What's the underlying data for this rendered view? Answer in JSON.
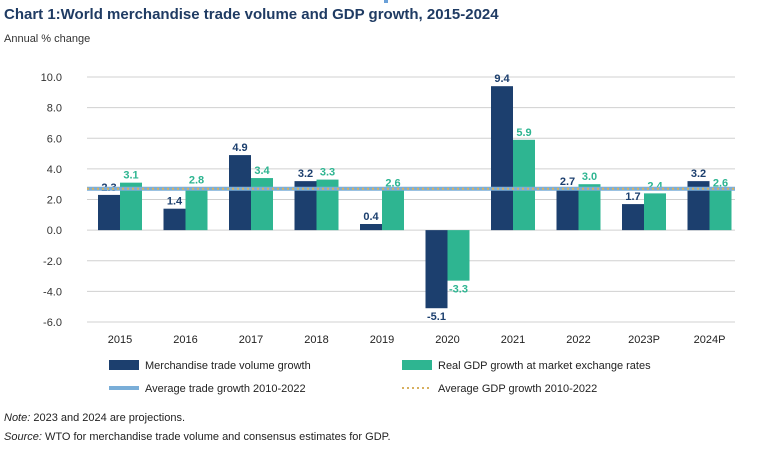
{
  "title": "Chart 1:World merchandise trade volume and GDP growth, 2015-2024",
  "subtitle": "Annual % change",
  "notes": {
    "note_label": "Note:",
    "note_text": " 2023 and 2024 are projections.",
    "source_label": "Source:",
    "source_text": " WTO for merchandise trade volume and consensus estimates for GDP."
  },
  "chart_data": {
    "type": "bar",
    "categories": [
      "2015",
      "2016",
      "2017",
      "2018",
      "2019",
      "2020",
      "2021",
      "2022",
      "2023P",
      "2024P"
    ],
    "series": [
      {
        "name": "Merchandise trade volume growth",
        "color": "#1c3f6e",
        "values": [
          2.3,
          1.4,
          4.9,
          3.2,
          0.4,
          -5.1,
          9.4,
          2.7,
          1.7,
          3.2
        ]
      },
      {
        "name": "Real GDP growth at market exchange rates",
        "color": "#2eb591",
        "values": [
          3.1,
          2.8,
          3.4,
          3.3,
          2.6,
          -3.3,
          5.9,
          3.0,
          2.4,
          2.6
        ]
      }
    ],
    "reference_lines": [
      {
        "name": "Average trade growth 2010-2022",
        "value": 2.7,
        "color": "#7aaed8",
        "style": "solid"
      },
      {
        "name": "Average GDP growth 2010-2022",
        "value": 2.7,
        "color": "#d8b060",
        "style": "dotted"
      }
    ],
    "y_ticks": [
      "10.0",
      "8.0",
      "6.0",
      "4.0",
      "2.0",
      "0.0",
      "-2.0",
      "-4.0",
      "-6.0"
    ],
    "ylim": [
      -6,
      10
    ],
    "grid": true,
    "legend_position": "bottom"
  }
}
